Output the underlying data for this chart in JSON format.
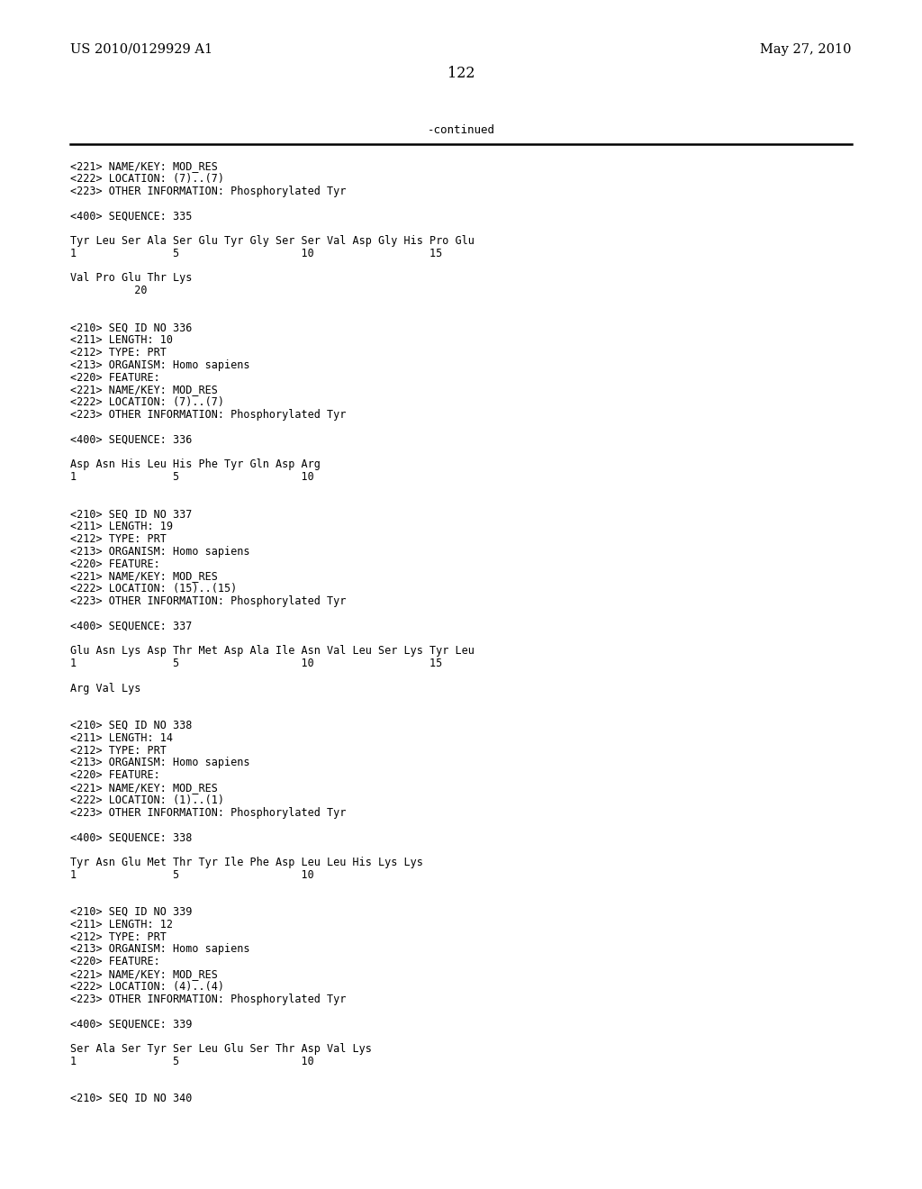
{
  "header_left": "US 2010/0129929 A1",
  "header_right": "May 27, 2010",
  "page_number": "122",
  "continued_text": "-continued",
  "background_color": "#ffffff",
  "text_color": "#000000",
  "mono_font_size": 8.5,
  "header_font_size": 10.5,
  "page_font_size": 11.5,
  "lines": [
    "<221> NAME/KEY: MOD_RES",
    "<222> LOCATION: (7)..(7)",
    "<223> OTHER INFORMATION: Phosphorylated Tyr",
    "",
    "<400> SEQUENCE: 335",
    "",
    "Tyr Leu Ser Ala Ser Glu Tyr Gly Ser Ser Val Asp Gly His Pro Glu",
    "1               5                   10                  15",
    "",
    "Val Pro Glu Thr Lys",
    "          20",
    "",
    "",
    "<210> SEQ ID NO 336",
    "<211> LENGTH: 10",
    "<212> TYPE: PRT",
    "<213> ORGANISM: Homo sapiens",
    "<220> FEATURE:",
    "<221> NAME/KEY: MOD_RES",
    "<222> LOCATION: (7)..(7)",
    "<223> OTHER INFORMATION: Phosphorylated Tyr",
    "",
    "<400> SEQUENCE: 336",
    "",
    "Asp Asn His Leu His Phe Tyr Gln Asp Arg",
    "1               5                   10",
    "",
    "",
    "<210> SEQ ID NO 337",
    "<211> LENGTH: 19",
    "<212> TYPE: PRT",
    "<213> ORGANISM: Homo sapiens",
    "<220> FEATURE:",
    "<221> NAME/KEY: MOD_RES",
    "<222> LOCATION: (15)..(15)",
    "<223> OTHER INFORMATION: Phosphorylated Tyr",
    "",
    "<400> SEQUENCE: 337",
    "",
    "Glu Asn Lys Asp Thr Met Asp Ala Ile Asn Val Leu Ser Lys Tyr Leu",
    "1               5                   10                  15",
    "",
    "Arg Val Lys",
    "",
    "",
    "<210> SEQ ID NO 338",
    "<211> LENGTH: 14",
    "<212> TYPE: PRT",
    "<213> ORGANISM: Homo sapiens",
    "<220> FEATURE:",
    "<221> NAME/KEY: MOD_RES",
    "<222> LOCATION: (1)..(1)",
    "<223> OTHER INFORMATION: Phosphorylated Tyr",
    "",
    "<400> SEQUENCE: 338",
    "",
    "Tyr Asn Glu Met Thr Tyr Ile Phe Asp Leu Leu His Lys Lys",
    "1               5                   10",
    "",
    "",
    "<210> SEQ ID NO 339",
    "<211> LENGTH: 12",
    "<212> TYPE: PRT",
    "<213> ORGANISM: Homo sapiens",
    "<220> FEATURE:",
    "<221> NAME/KEY: MOD_RES",
    "<222> LOCATION: (4)..(4)",
    "<223> OTHER INFORMATION: Phosphorylated Tyr",
    "",
    "<400> SEQUENCE: 339",
    "",
    "Ser Ala Ser Tyr Ser Leu Glu Ser Thr Asp Val Lys",
    "1               5                   10",
    "",
    "",
    "<210> SEQ ID NO 340"
  ]
}
